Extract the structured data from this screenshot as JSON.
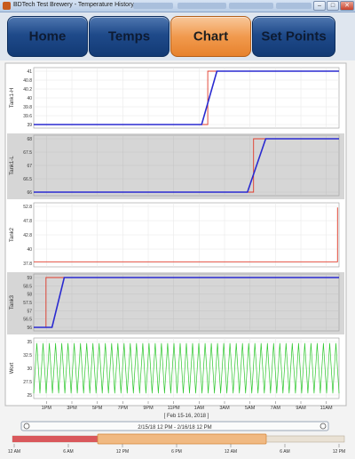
{
  "window": {
    "title": "BDTech Test Brewery - Temperature History",
    "controls": {
      "minimize": "–",
      "maximize": "□",
      "close": "✕"
    }
  },
  "tabs": [
    {
      "label": "Home",
      "active": false
    },
    {
      "label": "Temps",
      "active": false
    },
    {
      "label": "Chart",
      "active": true
    },
    {
      "label": "Set Points",
      "active": false
    }
  ],
  "colors": {
    "tab_active": "#f19a4e",
    "tab_inactive": "#1f4a8a",
    "setpoint_line": "#e03a2a",
    "temp_line": "#2a2ad0",
    "flow_line": "#2ec82e",
    "panel_gray": "#d6d6d6"
  },
  "chart_data": [
    {
      "type": "line",
      "ylabel": "Tank1-H",
      "yticks": [
        "41",
        "40.8",
        "40.2",
        "40",
        "39.8",
        "39.6",
        "39"
      ],
      "ylim": [
        39,
        41
      ],
      "background": "white",
      "series": [
        {
          "kind": "setpoint",
          "points": [
            [
              0,
              39
            ],
            [
              0.57,
              39
            ],
            [
              0.57,
              41
            ],
            [
              1,
              41
            ]
          ]
        },
        {
          "kind": "temp",
          "points": [
            [
              0,
              39
            ],
            [
              0.55,
              39
            ],
            [
              0.6,
              41
            ],
            [
              1,
              41
            ]
          ]
        }
      ]
    },
    {
      "type": "line",
      "ylabel": "Tank1-L",
      "yticks": [
        "68",
        "67.5",
        "67",
        "66.5",
        "66"
      ],
      "ylim": [
        66,
        68
      ],
      "background": "gray",
      "series": [
        {
          "kind": "setpoint",
          "points": [
            [
              0,
              66
            ],
            [
              0.72,
              66
            ],
            [
              0.72,
              68
            ],
            [
              1,
              68
            ]
          ]
        },
        {
          "kind": "temp",
          "points": [
            [
              0,
              66
            ],
            [
              0.7,
              66
            ],
            [
              0.76,
              68
            ],
            [
              1,
              68
            ]
          ]
        }
      ]
    },
    {
      "type": "line",
      "ylabel": "Tank2",
      "yticks": [
        "52.8",
        "47.8",
        "42.8",
        "40",
        "37.8"
      ],
      "ylim": [
        37.8,
        52.8
      ],
      "background": "white",
      "series": [
        {
          "kind": "setpoint",
          "points": [
            [
              0,
              38.2
            ],
            [
              0.995,
              38.2
            ],
            [
              0.995,
              52.5
            ]
          ]
        }
      ]
    },
    {
      "type": "line",
      "ylabel": "Tank3",
      "yticks": [
        "59",
        "58.5",
        "58",
        "57.5",
        "57",
        "56.5",
        "56"
      ],
      "ylim": [
        56,
        59
      ],
      "background": "gray",
      "series": [
        {
          "kind": "setpoint",
          "points": [
            [
              0,
              56
            ],
            [
              0.04,
              56
            ],
            [
              0.04,
              59
            ],
            [
              1,
              59
            ]
          ]
        },
        {
          "kind": "temp",
          "points": [
            [
              0,
              56
            ],
            [
              0.06,
              56
            ],
            [
              0.1,
              59
            ],
            [
              1,
              59
            ]
          ]
        }
      ]
    },
    {
      "type": "line",
      "ylabel": "Wort",
      "yticks": [
        "35",
        "32.5",
        "30",
        "27.5",
        "25"
      ],
      "ylim": [
        25,
        35
      ],
      "background": "white",
      "series": [
        {
          "kind": "flow",
          "oscillation": {
            "min": 25.3,
            "max": 34.7,
            "cycles": 49
          }
        }
      ]
    }
  ],
  "x_axis": {
    "ticks": [
      "1PM",
      "3PM",
      "5PM",
      "7PM",
      "9PM",
      "11PM",
      "1AM",
      "3AM",
      "5AM",
      "7AM",
      "9AM",
      "11AM"
    ],
    "label": "[ Feb 15-16, 2018 ]"
  },
  "navigator": {
    "range_label": "2/15/18 12 PM - 2/16/18 12 PM",
    "ticks": [
      "12 AM",
      "6 AM",
      "12 PM",
      "6 PM",
      "12 AM",
      "6 AM",
      "12 PM"
    ],
    "left_icon": "zoom-out-icon",
    "right_icon": "zoom-in-icon"
  }
}
